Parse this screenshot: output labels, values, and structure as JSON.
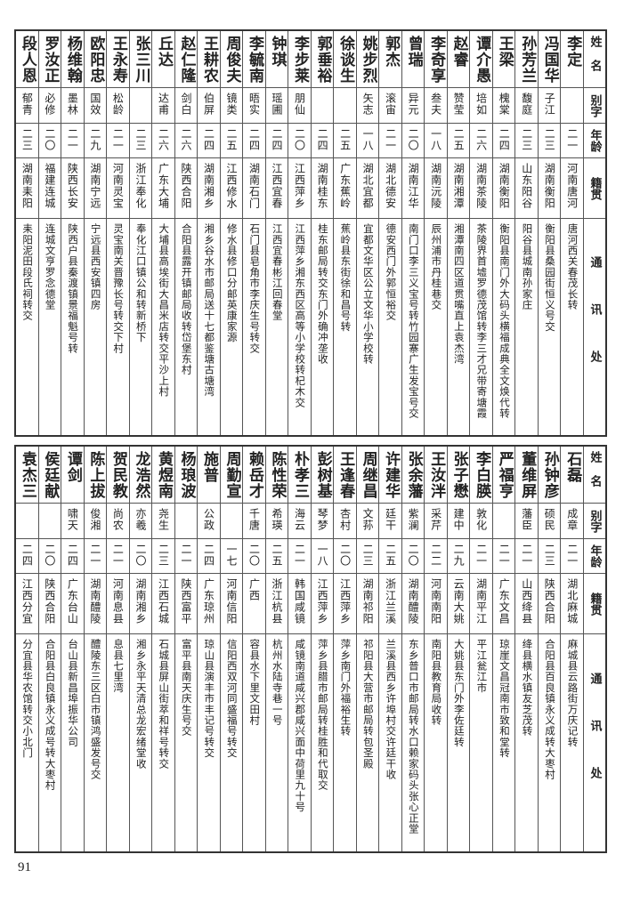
{
  "headers": [
    "姓名",
    "别字",
    "年龄",
    "籍贯",
    "通讯处"
  ],
  "top_rows": [
    {
      "name": "李定",
      "alias": "",
      "age": "二一",
      "native": "河南唐河",
      "address": "唐河西关春茂长转"
    },
    {
      "name": "冯国华",
      "alias": "子江",
      "age": "二三",
      "native": "湖南衡阳",
      "address": "衡阳县桑园街恒义号交"
    },
    {
      "name": "孙芳兰",
      "alias": "馥庭",
      "age": "二三",
      "native": "山东阳谷",
      "address": "阳谷县城南孙家庄"
    },
    {
      "name": "王梁",
      "alias": "槐棠",
      "age": "二四",
      "native": "湖南衡阳",
      "address": "衡阳县南门外大码头横福成典全文焕代转"
    },
    {
      "name": "谭介愚",
      "alias": "培如",
      "age": "二六",
      "native": "湖南茶陵",
      "address": "茶陵界首墟罗德茂馆转李三才兄带寄塘霞"
    },
    {
      "name": "赵睿",
      "alias": "赞莹",
      "age": "二五",
      "native": "湖南湘潭",
      "address": "湘潭南四区道贯嘴直上袁杰湾"
    },
    {
      "name": "李奇享",
      "alias": "叁夫",
      "age": "一八",
      "native": "湖南沅陵",
      "address": "辰州浦市丹桂巷交"
    },
    {
      "name": "曾瑞",
      "alias": "异元",
      "age": "二〇",
      "native": "湖南江华",
      "address": "南门口李三义宝号转竹园寨广生发宝号交"
    },
    {
      "name": "郭杰",
      "alias": "滚宙",
      "age": "二一",
      "native": "湖北德安",
      "address": "德安西门外郭恒裕交"
    },
    {
      "name": "姚步烈",
      "alias": "矢志",
      "age": "一八",
      "native": "湖北宜都",
      "address": "宜都文华区公立文华小学校转"
    },
    {
      "name": "徐谈生",
      "alias": "",
      "age": "二五",
      "native": "广东蕉岭",
      "address": "蕉岭县东街徐和昌号转"
    },
    {
      "name": "郭垂裕",
      "alias": "",
      "age": "二四",
      "native": "湖南桂东",
      "address": "桂东邮局转交东门外确冲垄收"
    },
    {
      "name": "李步莱",
      "alias": "朋仙",
      "age": "二〇",
      "native": "江西萍乡",
      "address": "江西萍乡湘东西区高等小学校转杞木交"
    },
    {
      "name": "钟琪",
      "alias": "瑶圃",
      "age": "二四",
      "native": "江西宜春",
      "address": "江西宜春彬江回春堂"
    },
    {
      "name": "李毓南",
      "alias": "晤实",
      "age": "二四",
      "native": "湖南石门",
      "address": "石门县皂角市李庆生号转交"
    },
    {
      "name": "周俊夫",
      "alias": "镜类",
      "age": "二五",
      "native": "江西修水",
      "address": "修水县修口分邮英康家源"
    },
    {
      "name": "王耕农",
      "alias": "伯屏",
      "age": "二四",
      "native": "湖南湘乡",
      "address": "湘乡谷水市邮局送十七都鉴塘古塘湾"
    },
    {
      "name": "赵仁隆",
      "alias": "剑白",
      "age": "二六",
      "native": "陕西合阳",
      "address": "合阳县露开镇邮局收转岱堡东村"
    },
    {
      "name": "丘达",
      "alias": "达甫",
      "age": "二六",
      "native": "广东大埔",
      "address": "大埔县高埃街大昌米店转交平沙上村"
    },
    {
      "name": "张三川",
      "alias": "",
      "age": "二三",
      "native": "浙江奉化",
      "address": "奉化江口镇公和转新桥下"
    },
    {
      "name": "王永寿",
      "alias": "松龄",
      "age": "二一",
      "native": "河南灵宝",
      "address": "灵宝南关晋豫长号转交下村"
    },
    {
      "name": "欧阳忠",
      "alias": "国效",
      "age": "二九",
      "native": "湖南宁远",
      "address": "宁远县西安镇四房"
    },
    {
      "name": "杨维翰",
      "alias": "墨林",
      "age": "二一",
      "native": "陕西长安",
      "address": "陕西户县秦渡镇景福魁号转"
    },
    {
      "name": "罗汝正",
      "alias": "必修",
      "age": "二〇",
      "native": "福建连城",
      "address": "连城文亨罗念德堂"
    },
    {
      "name": "段人恩",
      "alias": "郁青",
      "age": "二三",
      "native": "湖南耒阳",
      "address": "耒阳泥田段氏祠转交"
    }
  ],
  "bottom_rows": [
    {
      "name": "石磊",
      "alias": "成章",
      "age": "二一",
      "native": "湖北麻城",
      "address": "麻城县云路街万庆记转"
    },
    {
      "name": "孙钟彦",
      "alias": "硕民",
      "age": "二三",
      "native": "陕西合阳",
      "address": "合阳县百良镇永义成转大枣村"
    },
    {
      "name": "董维屏",
      "alias": "藩臣",
      "age": "二一",
      "native": "山西绛县",
      "address": "绛县横水镇友芝茂转"
    },
    {
      "name": "严福亨",
      "alias": "",
      "age": "二一",
      "native": "广东文昌",
      "address": "琼崖文昌冠南市致和堂转"
    },
    {
      "name": "李白朠",
      "alias": "敦化",
      "age": "二一",
      "native": "湖南平江",
      "address": "平江瓮江市"
    },
    {
      "name": "张子懋",
      "alias": "建中",
      "age": "二九",
      "native": "云南大姚",
      "address": "大姚县东门外李佐廷转"
    },
    {
      "name": "王汝泮",
      "alias": "采芹",
      "age": "二二",
      "native": "河南南阳",
      "address": "南阳县教育局收转"
    },
    {
      "name": "张余藩",
      "alias": "紫澜",
      "age": "二〇",
      "native": "湖南醴陵",
      "address": "东乡普口市邮局转水口赖家码头张心正堂"
    },
    {
      "name": "许建华",
      "alias": "廷干",
      "age": "二五",
      "native": "浙江兰溪",
      "address": "兰溪县西乡许埠村交许廷干收"
    },
    {
      "name": "周继昌",
      "alias": "文荪",
      "age": "二三",
      "native": "湖南祁阳",
      "address": "祁阳县大营市邮局转包圣殿"
    },
    {
      "name": "王逢春",
      "alias": "杏村",
      "age": "二〇",
      "native": "江西萍乡",
      "address": "萍乡南门外福裕生转"
    },
    {
      "name": "彭树基",
      "alias": "琴梦",
      "age": "一八",
      "native": "江西萍乡",
      "address": "萍乡县腊市邮局转桂胜和代取交"
    },
    {
      "name": "朴孝三",
      "alias": "海云",
      "age": "二一",
      "native": "韩国咸镜",
      "address": "咸镜南道咸兴郡咸兴面中荷里九十号"
    },
    {
      "name": "陈性荣",
      "alias": "希瑛",
      "age": "二五",
      "native": "浙江杭县",
      "address": "杭州水陆寺巷一号"
    },
    {
      "name": "赖岳才",
      "alias": "千唐",
      "age": "二〇",
      "native": "广西",
      "address": "容县水下里文田村"
    },
    {
      "name": "周勤宣",
      "alias": "",
      "age": "一七",
      "native": "河南信阳",
      "address": "信阳西双河同盛福号转交"
    },
    {
      "name": "施普",
      "alias": "公政",
      "age": "二四",
      "native": "广东琼州",
      "address": "琼山县演丰市丰记号转交"
    },
    {
      "name": "杨琅波",
      "alias": "",
      "age": "二一",
      "native": "陕西富平",
      "address": "富平县南天庆生号交"
    },
    {
      "name": "黄煜南",
      "alias": "尧生",
      "age": "二三",
      "native": "江西石城",
      "address": "石城县屏山街萃和祥号转交"
    },
    {
      "name": "龙浩然",
      "alias": "亦羲",
      "age": "二〇",
      "native": "湖南湘乡",
      "address": "湘乡永平天清总龙宏绪堂收"
    },
    {
      "name": "贺民教",
      "alias": "尚农",
      "age": "二一",
      "native": "河南息县",
      "address": "息县七里湾"
    },
    {
      "name": "陈上拔",
      "alias": "俊湘",
      "age": "二一",
      "native": "湖南醴陵",
      "address": "醴陵东三区白市镇鸿盛发号交"
    },
    {
      "name": "谭剑",
      "alias": "啸天",
      "age": "二四",
      "native": "广东台山",
      "address": "台山县新昌埠振华公司"
    },
    {
      "name": "侯廷献",
      "alias": "",
      "age": "二〇",
      "native": "陕西合阳",
      "address": "合阳县白良镇永义成号转大枣村"
    },
    {
      "name": "袁杰三",
      "alias": "",
      "age": "二四",
      "native": "江西分宜",
      "address": "分宜县华农馆转交小北门"
    }
  ],
  "page_number": "91"
}
